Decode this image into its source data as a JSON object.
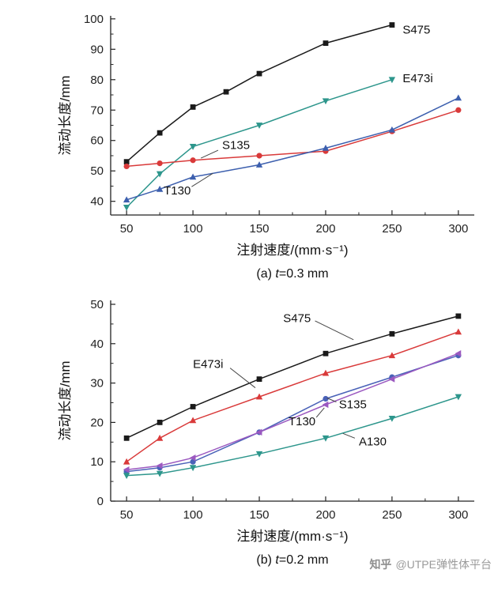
{
  "watermark": {
    "brand": "知乎",
    "handle": "@UTPE弹性体平台"
  },
  "chart_data": [
    {
      "type": "line",
      "caption": {
        "prefix": "(a) ",
        "var": "t",
        "suffix": "=0.3 mm"
      },
      "xlabel": "注射速度/(mm·s⁻¹)",
      "ylabel": "流动长度/mm",
      "xlim": [
        38,
        312
      ],
      "ylim": [
        35.5,
        101
      ],
      "xticks": [
        50,
        100,
        150,
        200,
        250,
        300
      ],
      "yticks": [
        40,
        50,
        60,
        70,
        80,
        90,
        100
      ],
      "xminor": 25,
      "yminor": 5,
      "grid": false,
      "legend": "direct-labels",
      "series": [
        {
          "name": "S475",
          "color": "#1a1a1a",
          "marker": "square",
          "x": [
            50,
            75,
            100,
            125,
            150,
            200,
            250
          ],
          "y": [
            53,
            62.5,
            71,
            76,
            82,
            92,
            98
          ]
        },
        {
          "name": "E473i",
          "color": "#2d968c",
          "marker": "triangle-down",
          "x": [
            50,
            75,
            100,
            150,
            200,
            250
          ],
          "y": [
            38,
            49,
            58,
            65,
            73,
            80
          ]
        },
        {
          "name": "S135",
          "color": "#d93a3a",
          "marker": "circle",
          "x": [
            50,
            75,
            100,
            150,
            200,
            250,
            300
          ],
          "y": [
            51.5,
            52.5,
            53.5,
            55,
            56.5,
            63,
            70
          ]
        },
        {
          "name": "T130",
          "color": "#3c5fae",
          "marker": "triangle-up",
          "x": [
            50,
            75,
            100,
            150,
            200,
            250,
            300
          ],
          "y": [
            40.5,
            44,
            48,
            52,
            57.5,
            63.5,
            74
          ]
        }
      ],
      "annotations": [
        {
          "text": "S475",
          "x": 258,
          "y": 96.5
        },
        {
          "text": "E473i",
          "x": 258,
          "y": 80.5
        },
        {
          "text": "S135",
          "x": 122,
          "y": 58.5,
          "leader": [
            119,
            56.8,
            106,
            54.2
          ]
        },
        {
          "text": "T130",
          "x": 78,
          "y": 43.5,
          "leader": [
            99,
            44.8,
            115,
            49.2
          ]
        }
      ]
    },
    {
      "type": "line",
      "caption": {
        "prefix": "(b) ",
        "var": "t",
        "suffix": "=0.2 mm"
      },
      "xlabel": "注射速度/(mm·s⁻¹)",
      "ylabel": "流动长度/mm",
      "xlim": [
        38,
        312
      ],
      "ylim": [
        0,
        51
      ],
      "xticks": [
        50,
        100,
        150,
        200,
        250,
        300
      ],
      "yticks": [
        0,
        10,
        20,
        30,
        40,
        50
      ],
      "xminor": 25,
      "yminor": 5,
      "grid": false,
      "legend": "direct-labels",
      "series": [
        {
          "name": "S475",
          "color": "#1a1a1a",
          "marker": "square",
          "x": [
            50,
            75,
            100,
            150,
            200,
            250,
            300
          ],
          "y": [
            16,
            20,
            24,
            31,
            37.5,
            42.5,
            47
          ]
        },
        {
          "name": "E473i",
          "color": "#d93a3a",
          "marker": "triangle-up",
          "x": [
            50,
            75,
            100,
            150,
            200,
            250,
            300
          ],
          "y": [
            10,
            16,
            20.5,
            26.5,
            32.5,
            37,
            43
          ]
        },
        {
          "name": "S135",
          "color": "#4a62b8",
          "marker": "circle",
          "x": [
            50,
            75,
            100,
            150,
            200,
            250,
            300
          ],
          "y": [
            7.5,
            8.5,
            10,
            17.5,
            26,
            31.5,
            37
          ]
        },
        {
          "name": "T130",
          "color": "#9b59c0",
          "marker": "triangle-left",
          "x": [
            50,
            75,
            100,
            150,
            200,
            250,
            300
          ],
          "y": [
            8,
            9,
            11,
            17.5,
            24.5,
            31,
            37.5
          ]
        },
        {
          "name": "A130",
          "color": "#2d968c",
          "marker": "triangle-down",
          "x": [
            50,
            75,
            100,
            150,
            200,
            250,
            300
          ],
          "y": [
            6.5,
            7,
            8.5,
            12,
            16,
            21,
            26.5
          ]
        }
      ],
      "annotations": [
        {
          "text": "S475",
          "x": 168,
          "y": 46.5,
          "leader": [
            192,
            45.8,
            221,
            41
          ]
        },
        {
          "text": "E473i",
          "x": 100,
          "y": 34.8,
          "leader": [
            128,
            33.8,
            147,
            28.8
          ]
        },
        {
          "text": "S135",
          "x": 210,
          "y": 24.6,
          "leader": [
            208,
            25.2,
            201,
            26.2
          ]
        },
        {
          "text": "T130",
          "x": 172,
          "y": 20.3,
          "leader": [
            193,
            21.3,
            199,
            23.7
          ]
        },
        {
          "text": "A130",
          "x": 225,
          "y": 15.2,
          "leader": [
            222,
            16.0,
            213,
            17.2
          ]
        }
      ]
    }
  ]
}
